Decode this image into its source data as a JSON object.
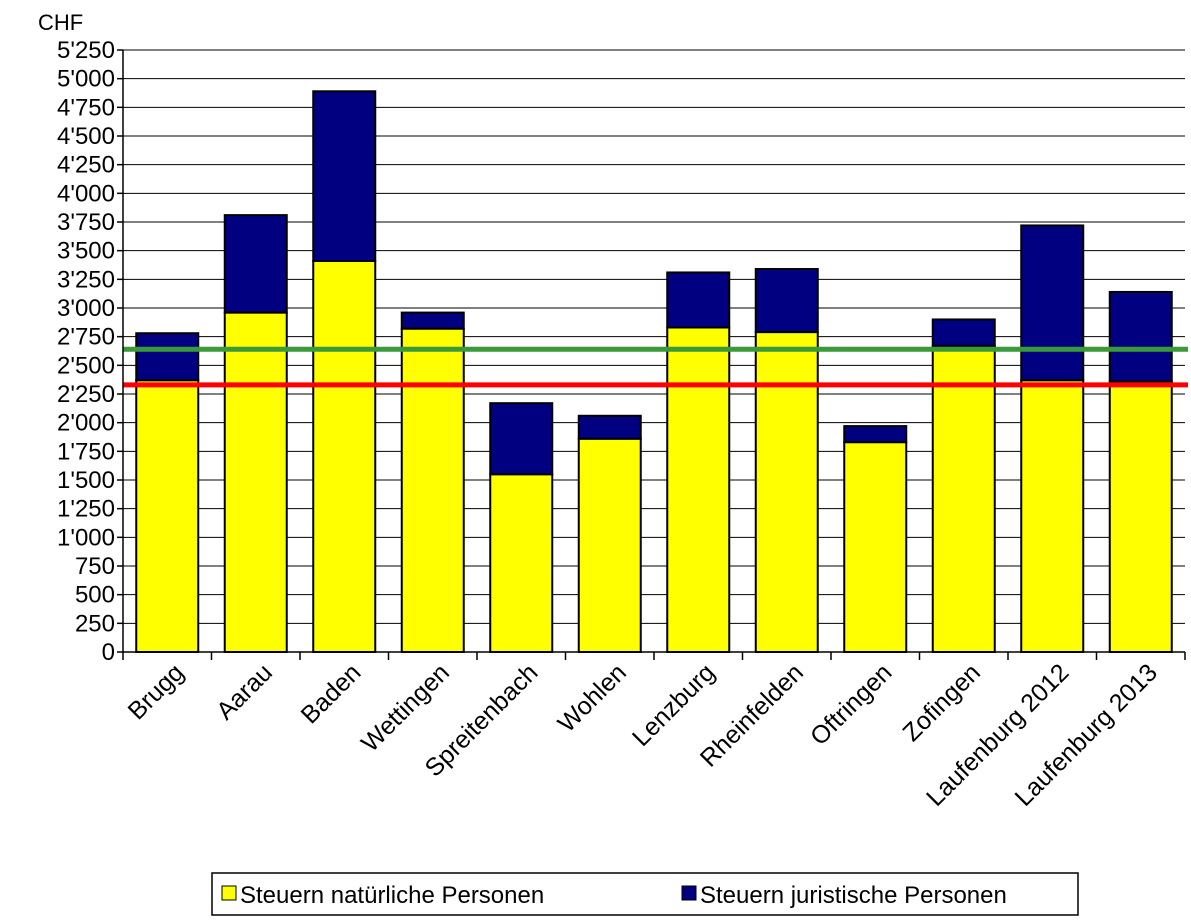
{
  "chart_data": {
    "type": "bar",
    "stacked": true,
    "unit_label": "CHF",
    "categories": [
      "Brugg",
      "Aarau",
      "Baden",
      "Wettingen",
      "Spreitenbach",
      "Wohlen",
      "Lenzburg",
      "Rheinfelden",
      "Oftringen",
      "Zofingen",
      "Laufenburg 2012",
      "Laufenburg 2013"
    ],
    "series": [
      {
        "name": "Steuern natürliche Personen",
        "color": "#ffff00",
        "values": [
          2370,
          2960,
          3410,
          2820,
          1550,
          1860,
          2830,
          2790,
          1830,
          2670,
          2370,
          2360
        ]
      },
      {
        "name": "Steuern juristische Personen",
        "color": "#000080",
        "values": [
          410,
          850,
          1480,
          140,
          620,
          200,
          480,
          550,
          140,
          230,
          1350,
          780
        ]
      }
    ],
    "reference_lines": [
      {
        "value": 2640,
        "color": "#3a9a3a"
      },
      {
        "value": 2330,
        "color": "#ff0000"
      }
    ],
    "ylim": [
      0,
      5250
    ],
    "yticks": [
      {
        "value": 0,
        "label": "0"
      },
      {
        "value": 250,
        "label": "250"
      },
      {
        "value": 500,
        "label": "500"
      },
      {
        "value": 750,
        "label": "750"
      },
      {
        "value": 1000,
        "label": "1'000"
      },
      {
        "value": 1250,
        "label": "1'250"
      },
      {
        "value": 1500,
        "label": "1'500"
      },
      {
        "value": 1750,
        "label": "1'750"
      },
      {
        "value": 2000,
        "label": "2'000"
      },
      {
        "value": 2250,
        "label": "2'250"
      },
      {
        "value": 2500,
        "label": "2'500"
      },
      {
        "value": 2750,
        "label": "2'750"
      },
      {
        "value": 3000,
        "label": "3'000"
      },
      {
        "value": 3250,
        "label": "3'250"
      },
      {
        "value": 3500,
        "label": "3'500"
      },
      {
        "value": 3750,
        "label": "3'750"
      },
      {
        "value": 4000,
        "label": "4'000"
      },
      {
        "value": 4250,
        "label": "4'250"
      },
      {
        "value": 4500,
        "label": "4'500"
      },
      {
        "value": 4750,
        "label": "4'750"
      },
      {
        "value": 5000,
        "label": "5'000"
      },
      {
        "value": 5250,
        "label": "5'250"
      }
    ],
    "grid": true,
    "legend_position": "bottom"
  }
}
